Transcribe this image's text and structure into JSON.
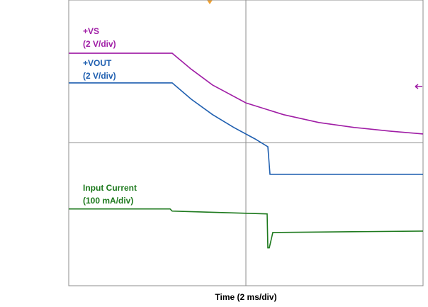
{
  "chart_data": {
    "type": "line",
    "xlabel": "Time (2 ms/div)",
    "xlim": [
      0,
      10
    ],
    "ylim": [
      0,
      8
    ],
    "xticks": [
      0,
      5,
      10
    ],
    "yticks": [
      0,
      4,
      8
    ],
    "grid": true,
    "series": [
      {
        "name": "+VS",
        "color": "#a01ea6",
        "x": [
          0,
          2.92,
          3.46,
          4.06,
          5,
          6.06,
          7.06,
          8.06,
          9.06,
          10
        ],
        "values": [
          6.51,
          6.51,
          6.06,
          5.62,
          5.12,
          4.79,
          4.57,
          4.43,
          4.33,
          4.25
        ]
      },
      {
        "name": "+VOUT",
        "color": "#1f5fb0",
        "x": [
          0,
          2.92,
          3.46,
          4.06,
          4.66,
          5.26,
          5.62,
          5.68,
          10
        ],
        "values": [
          5.68,
          5.68,
          5.22,
          4.79,
          4.43,
          4.11,
          3.89,
          3.12,
          3.12
        ]
      },
      {
        "name": "Input Current",
        "color": "#1e7a1e",
        "x": [
          0,
          2.86,
          2.92,
          5.6,
          5.62,
          5.66,
          5.76,
          10
        ],
        "values": [
          2.15,
          2.15,
          2.09,
          2.01,
          1.06,
          1.06,
          1.49,
          1.53
        ]
      }
    ],
    "annotations": [
      {
        "lines": [
          "+VS",
          "(2 V/div)"
        ],
        "color": "#a01ea6"
      },
      {
        "lines": [
          "+VOUT",
          "(2 V/div)"
        ],
        "color": "#1f5fb0"
      },
      {
        "lines": [
          "Input Current",
          "(100 mA/div)"
        ],
        "color": "#1e7a1e"
      }
    ]
  }
}
